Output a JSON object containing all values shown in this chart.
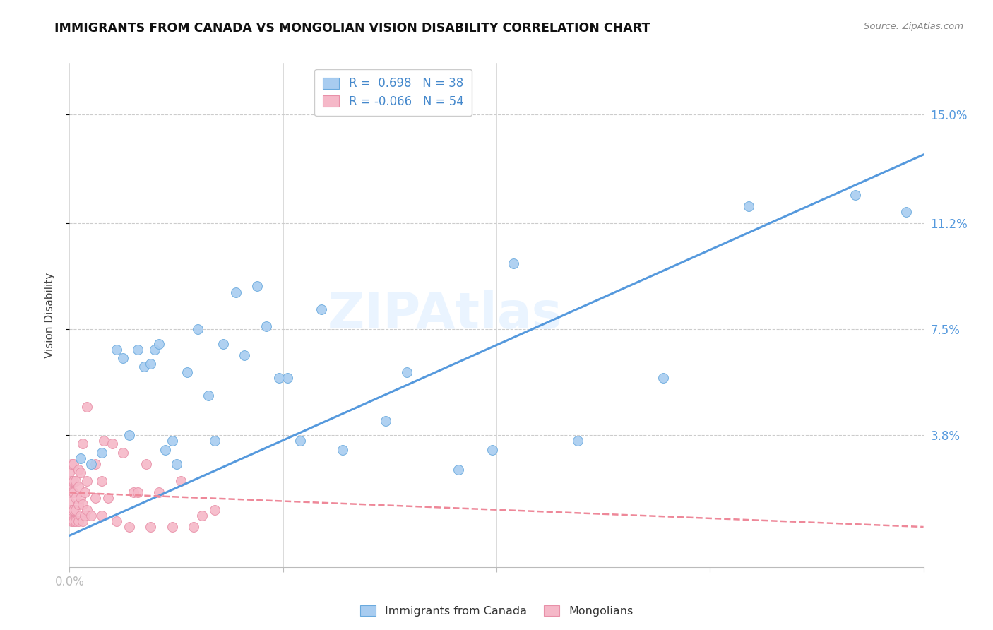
{
  "title": "IMMIGRANTS FROM CANADA VS MONGOLIAN VISION DISABILITY CORRELATION CHART",
  "source": "Source: ZipAtlas.com",
  "ylabel": "Vision Disability",
  "ytick_labels": [
    "15.0%",
    "11.2%",
    "7.5%",
    "3.8%"
  ],
  "ytick_values": [
    0.15,
    0.112,
    0.075,
    0.038
  ],
  "xlim": [
    0.0,
    0.4
  ],
  "ylim": [
    -0.008,
    0.168
  ],
  "blue_color": "#A8CCF0",
  "pink_color": "#F5B8C8",
  "blue_edge_color": "#6AAADE",
  "pink_edge_color": "#E890A8",
  "blue_line_color": "#5599DD",
  "pink_line_color": "#EE8899",
  "legend_r1": "R =  0.698   N = 38",
  "legend_r2": "R = -0.066   N = 54",
  "watermark": "ZIPAtlas",
  "blue_scatter": [
    [
      0.005,
      0.03
    ],
    [
      0.01,
      0.028
    ],
    [
      0.015,
      0.032
    ],
    [
      0.022,
      0.068
    ],
    [
      0.025,
      0.065
    ],
    [
      0.028,
      0.038
    ],
    [
      0.032,
      0.068
    ],
    [
      0.035,
      0.062
    ],
    [
      0.038,
      0.063
    ],
    [
      0.04,
      0.068
    ],
    [
      0.042,
      0.07
    ],
    [
      0.045,
      0.033
    ],
    [
      0.048,
      0.036
    ],
    [
      0.05,
      0.028
    ],
    [
      0.055,
      0.06
    ],
    [
      0.06,
      0.075
    ],
    [
      0.065,
      0.052
    ],
    [
      0.068,
      0.036
    ],
    [
      0.072,
      0.07
    ],
    [
      0.078,
      0.088
    ],
    [
      0.082,
      0.066
    ],
    [
      0.088,
      0.09
    ],
    [
      0.092,
      0.076
    ],
    [
      0.098,
      0.058
    ],
    [
      0.102,
      0.058
    ],
    [
      0.108,
      0.036
    ],
    [
      0.118,
      0.082
    ],
    [
      0.128,
      0.033
    ],
    [
      0.148,
      0.043
    ],
    [
      0.158,
      0.06
    ],
    [
      0.182,
      0.026
    ],
    [
      0.198,
      0.033
    ],
    [
      0.208,
      0.098
    ],
    [
      0.238,
      0.036
    ],
    [
      0.278,
      0.058
    ],
    [
      0.318,
      0.118
    ],
    [
      0.368,
      0.122
    ],
    [
      0.392,
      0.116
    ]
  ],
  "pink_scatter": [
    [
      0.0,
      0.01
    ],
    [
      0.0,
      0.015
    ],
    [
      0.0,
      0.02
    ],
    [
      0.0,
      0.025
    ],
    [
      0.001,
      0.008
    ],
    [
      0.001,
      0.012
    ],
    [
      0.001,
      0.018
    ],
    [
      0.001,
      0.022
    ],
    [
      0.001,
      0.028
    ],
    [
      0.002,
      0.008
    ],
    [
      0.002,
      0.012
    ],
    [
      0.002,
      0.018
    ],
    [
      0.002,
      0.022
    ],
    [
      0.002,
      0.028
    ],
    [
      0.003,
      0.008
    ],
    [
      0.003,
      0.012
    ],
    [
      0.003,
      0.016
    ],
    [
      0.003,
      0.022
    ],
    [
      0.004,
      0.008
    ],
    [
      0.004,
      0.014
    ],
    [
      0.004,
      0.02
    ],
    [
      0.004,
      0.026
    ],
    [
      0.005,
      0.01
    ],
    [
      0.005,
      0.016
    ],
    [
      0.005,
      0.025
    ],
    [
      0.006,
      0.008
    ],
    [
      0.006,
      0.014
    ],
    [
      0.006,
      0.035
    ],
    [
      0.007,
      0.01
    ],
    [
      0.007,
      0.018
    ],
    [
      0.008,
      0.012
    ],
    [
      0.008,
      0.022
    ],
    [
      0.008,
      0.048
    ],
    [
      0.01,
      0.01
    ],
    [
      0.012,
      0.016
    ],
    [
      0.012,
      0.028
    ],
    [
      0.015,
      0.01
    ],
    [
      0.015,
      0.022
    ],
    [
      0.016,
      0.036
    ],
    [
      0.018,
      0.016
    ],
    [
      0.02,
      0.035
    ],
    [
      0.022,
      0.008
    ],
    [
      0.025,
      0.032
    ],
    [
      0.028,
      0.006
    ],
    [
      0.03,
      0.018
    ],
    [
      0.032,
      0.018
    ],
    [
      0.036,
      0.028
    ],
    [
      0.038,
      0.006
    ],
    [
      0.042,
      0.018
    ],
    [
      0.048,
      0.006
    ],
    [
      0.052,
      0.022
    ],
    [
      0.058,
      0.006
    ],
    [
      0.062,
      0.01
    ],
    [
      0.068,
      0.012
    ]
  ],
  "blue_trendline_x": [
    0.0,
    0.4
  ],
  "blue_trendline_y": [
    0.003,
    0.136
  ],
  "pink_trendline_x": [
    0.0,
    0.4
  ],
  "pink_trendline_y": [
    0.018,
    0.006
  ],
  "xtick_positions": [
    0.0,
    0.1,
    0.2,
    0.3,
    0.4
  ],
  "xtick_labels_show": {
    "0.0": "0.0%"
  }
}
